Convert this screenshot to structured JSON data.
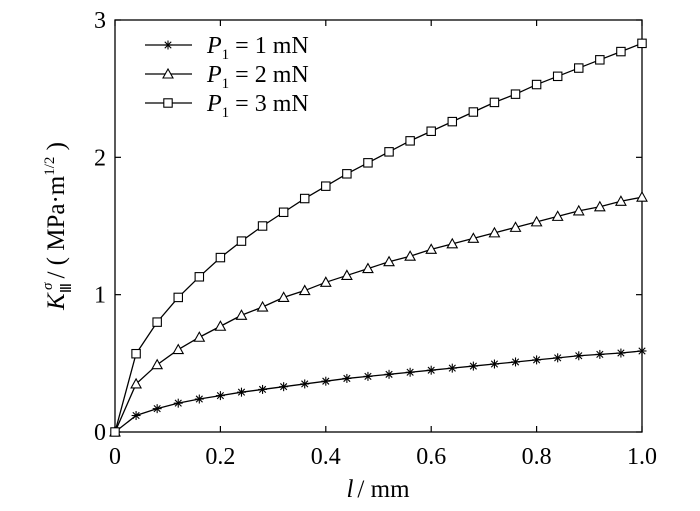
{
  "chart_data": {
    "type": "line",
    "xlabel": {
      "var": "l",
      "unit": "/ mm"
    },
    "ylabel": {
      "var": "K",
      "sup": "σ",
      "sub": "Ⅲ",
      "unit_open": "/ ( MPa·m",
      "unit_sup": "1/2",
      "unit_close": " )"
    },
    "xlim": [
      0,
      1.0
    ],
    "ylim": [
      0,
      3
    ],
    "xticks": [
      "0",
      "0.2",
      "0.4",
      "0.6",
      "0.8",
      "1.0"
    ],
    "yticks": [
      "0",
      "1",
      "2",
      "3"
    ],
    "grid": false,
    "legend_position": "top-left",
    "x": [
      0,
      0.04,
      0.08,
      0.12,
      0.16,
      0.2,
      0.24,
      0.28,
      0.32,
      0.36,
      0.4,
      0.44,
      0.48,
      0.52,
      0.56,
      0.6,
      0.64,
      0.68,
      0.72,
      0.76,
      0.8,
      0.84,
      0.88,
      0.92,
      0.96,
      1.0
    ],
    "series": [
      {
        "name": "P1 = 1 mN",
        "name_var": "P",
        "name_sub": "1",
        "name_rest": " = 1 mN",
        "marker": "star",
        "values": [
          0,
          0.12,
          0.17,
          0.21,
          0.24,
          0.265,
          0.29,
          0.31,
          0.33,
          0.35,
          0.37,
          0.39,
          0.405,
          0.42,
          0.435,
          0.45,
          0.465,
          0.48,
          0.495,
          0.51,
          0.525,
          0.54,
          0.555,
          0.565,
          0.575,
          0.59
        ]
      },
      {
        "name": "P1 = 2 mN",
        "name_var": "P",
        "name_sub": "1",
        "name_rest": " = 2 mN",
        "marker": "triangle",
        "values": [
          0,
          0.35,
          0.49,
          0.6,
          0.69,
          0.77,
          0.85,
          0.91,
          0.98,
          1.03,
          1.09,
          1.14,
          1.19,
          1.24,
          1.28,
          1.33,
          1.37,
          1.41,
          1.45,
          1.49,
          1.53,
          1.57,
          1.61,
          1.64,
          1.68,
          1.71
        ]
      },
      {
        "name": "P1 = 3 mN",
        "name_var": "P",
        "name_sub": "1",
        "name_rest": " = 3 mN",
        "marker": "square",
        "values": [
          0,
          0.57,
          0.8,
          0.98,
          1.13,
          1.27,
          1.39,
          1.5,
          1.6,
          1.7,
          1.79,
          1.88,
          1.96,
          2.04,
          2.12,
          2.19,
          2.26,
          2.33,
          2.4,
          2.46,
          2.53,
          2.59,
          2.65,
          2.71,
          2.77,
          2.83
        ]
      }
    ]
  }
}
